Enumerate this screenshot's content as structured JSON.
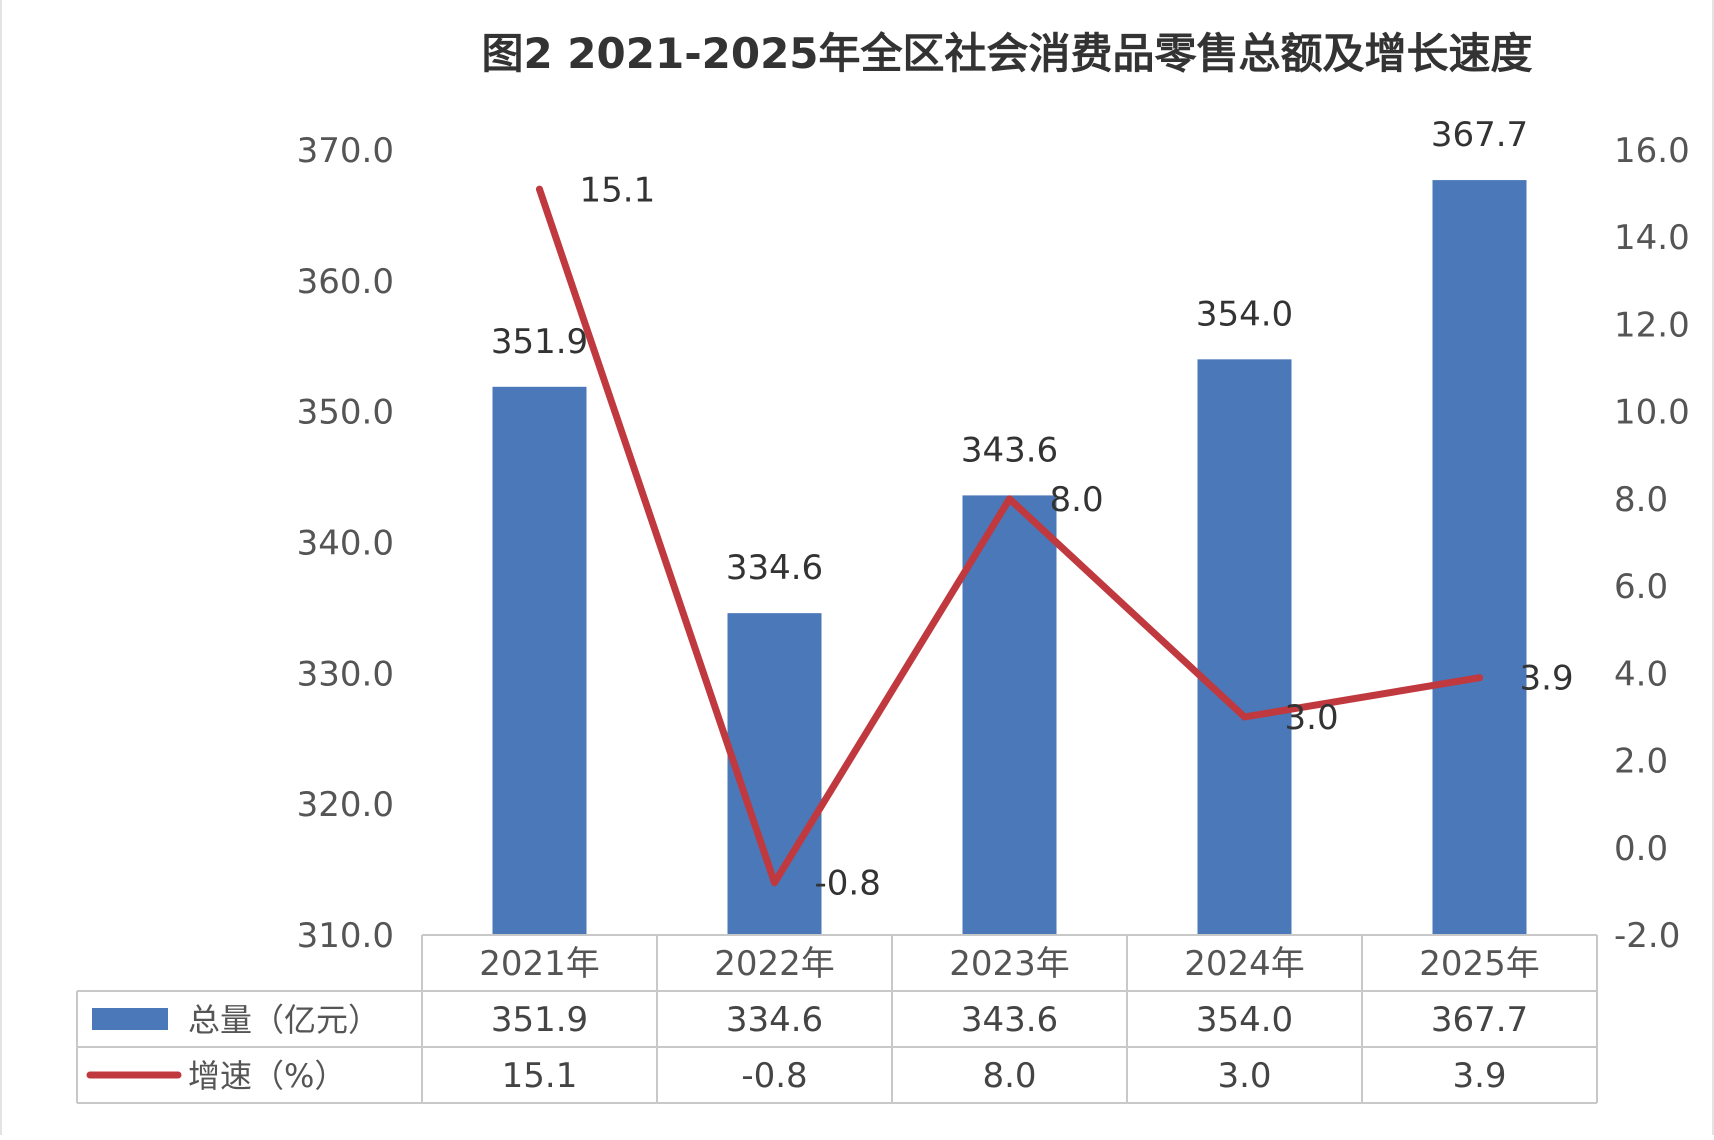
{
  "chart_data": {
    "type": "bar",
    "title": "图2 2021-2025年全区社会消费品零售总额及增长速度",
    "categories": [
      "2021年",
      "2022年",
      "2023年",
      "2024年",
      "2025年"
    ],
    "series": [
      {
        "name": "总量（亿元）",
        "type": "bar",
        "axis": "left",
        "color": "#4a78b9",
        "values": [
          351.9,
          334.6,
          343.6,
          354.0,
          367.7
        ],
        "value_labels": [
          "351.9",
          "334.6",
          "343.6",
          "354.0",
          "367.7"
        ]
      },
      {
        "name": "增速（%）",
        "type": "line",
        "axis": "right",
        "color": "#c0393f",
        "values": [
          15.1,
          -0.8,
          8.0,
          3.0,
          3.9
        ],
        "value_labels": [
          "15.1",
          "-0.8",
          "8.0",
          "3.0",
          "3.9"
        ]
      }
    ],
    "y_left": {
      "ylim": [
        310.0,
        370.0
      ],
      "ticks": [
        "370.0",
        "360.0",
        "350.0",
        "340.0",
        "330.0",
        "320.0",
        "310.0"
      ]
    },
    "y_right": {
      "ylim": [
        -2.0,
        16.0
      ],
      "ticks": [
        "16.0",
        "14.0",
        "12.0",
        "10.0",
        "8.0",
        "6.0",
        "4.0",
        "2.0",
        "0.0",
        "-2.0"
      ]
    },
    "grid": false,
    "legend": "data-table-below",
    "table": {
      "row_labels": [
        "总量（亿元）",
        "增速（%）"
      ],
      "rows": [
        [
          "351.9",
          "334.6",
          "343.6",
          "354.0",
          "367.7"
        ],
        [
          "15.1",
          "-0.8",
          "8.0",
          "3.0",
          "3.9"
        ]
      ]
    }
  }
}
